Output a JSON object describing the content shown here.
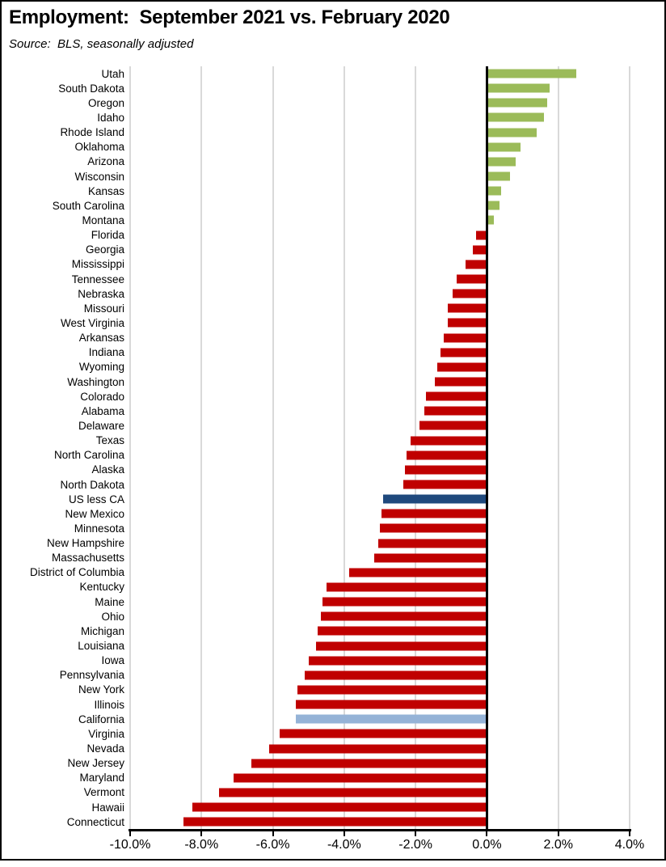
{
  "chart_data": {
    "type": "bar",
    "orientation": "horizontal",
    "title": "Employment:  September 2021 vs. February 2020",
    "subtitle": "Source:  BLS, seasonally adjusted",
    "xlabel": "",
    "ylabel": "",
    "xlim": [
      -10,
      4
    ],
    "grid": true,
    "x_ticks": [
      -10,
      -8,
      -6,
      -4,
      -2,
      0,
      2,
      4
    ],
    "x_tick_labels": [
      "-10.0%",
      "-8.0%",
      "-6.0%",
      "-4.0%",
      "-2.0%",
      "0.0%",
      "2.0%",
      "4.0%"
    ],
    "categories": [
      "Utah",
      "South Dakota",
      "Oregon",
      "Idaho",
      "Rhode Island",
      "Oklahoma",
      "Arizona",
      "Wisconsin",
      "Kansas",
      "South Carolina",
      "Montana",
      "Florida",
      "Georgia",
      "Mississippi",
      "Tennessee",
      "Nebraska",
      "Missouri",
      "West Virginia",
      "Arkansas",
      "Indiana",
      "Wyoming",
      "Washington",
      "Colorado",
      "Alabama",
      "Delaware",
      "Texas",
      "North Carolina",
      "Alaska",
      "North Dakota",
      "US less CA",
      "New Mexico",
      "Minnesota",
      "New Hampshire",
      "Massachusetts",
      "District of Columbia",
      "Kentucky",
      "Maine",
      "Ohio",
      "Michigan",
      "Louisiana",
      "Iowa",
      "Pennsylvania",
      "New York",
      "Illinois",
      "California",
      "Virginia",
      "Nevada",
      "New Jersey",
      "Maryland",
      "Vermont",
      "Hawaii",
      "Connecticut"
    ],
    "values": [
      2.5,
      1.75,
      1.7,
      1.6,
      1.4,
      0.95,
      0.8,
      0.65,
      0.4,
      0.35,
      0.2,
      -0.3,
      -0.4,
      -0.6,
      -0.85,
      -0.95,
      -1.1,
      -1.1,
      -1.2,
      -1.3,
      -1.4,
      -1.45,
      -1.7,
      -1.75,
      -1.9,
      -2.15,
      -2.25,
      -2.3,
      -2.35,
      -2.9,
      -2.95,
      -3.0,
      -3.05,
      -3.15,
      -3.85,
      -4.5,
      -4.6,
      -4.65,
      -4.75,
      -4.8,
      -5.0,
      -5.1,
      -5.3,
      -5.35,
      -5.35,
      -5.8,
      -6.1,
      -6.6,
      -7.1,
      -7.5,
      -8.25,
      -8.5
    ],
    "colors": {
      "positive": "#9BBB59",
      "negative": "#C00000",
      "highlights": {
        "US less CA": "#1F497D",
        "California": "#95B3D7"
      },
      "gridline": "#D9D9D9",
      "zero_axis": "#000000"
    },
    "legend_position": "none"
  }
}
